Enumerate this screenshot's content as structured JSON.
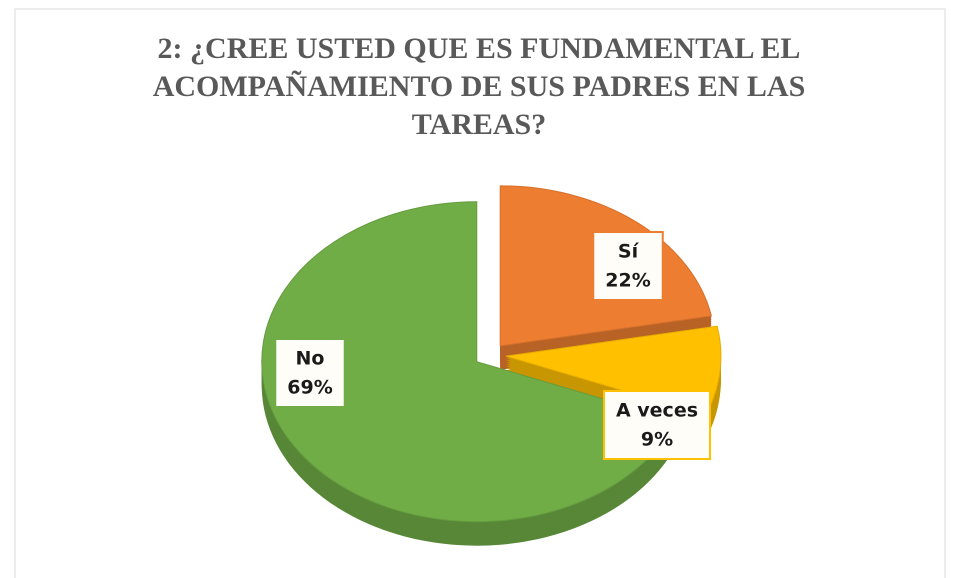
{
  "chart_data": {
    "type": "pie",
    "title": "2: ¿CREE USTED QUE ES FUNDAMENTAL EL ACOMPAÑAMIENTO DE SUS PADRES EN LAS TAREAS?",
    "categories": [
      "Sí",
      "A veces",
      "No"
    ],
    "values": [
      22,
      9,
      69
    ],
    "value_labels": [
      "22%",
      "9%",
      "69%"
    ],
    "colors": [
      "#ed7d31",
      "#ffc000",
      "#70ad47"
    ]
  }
}
